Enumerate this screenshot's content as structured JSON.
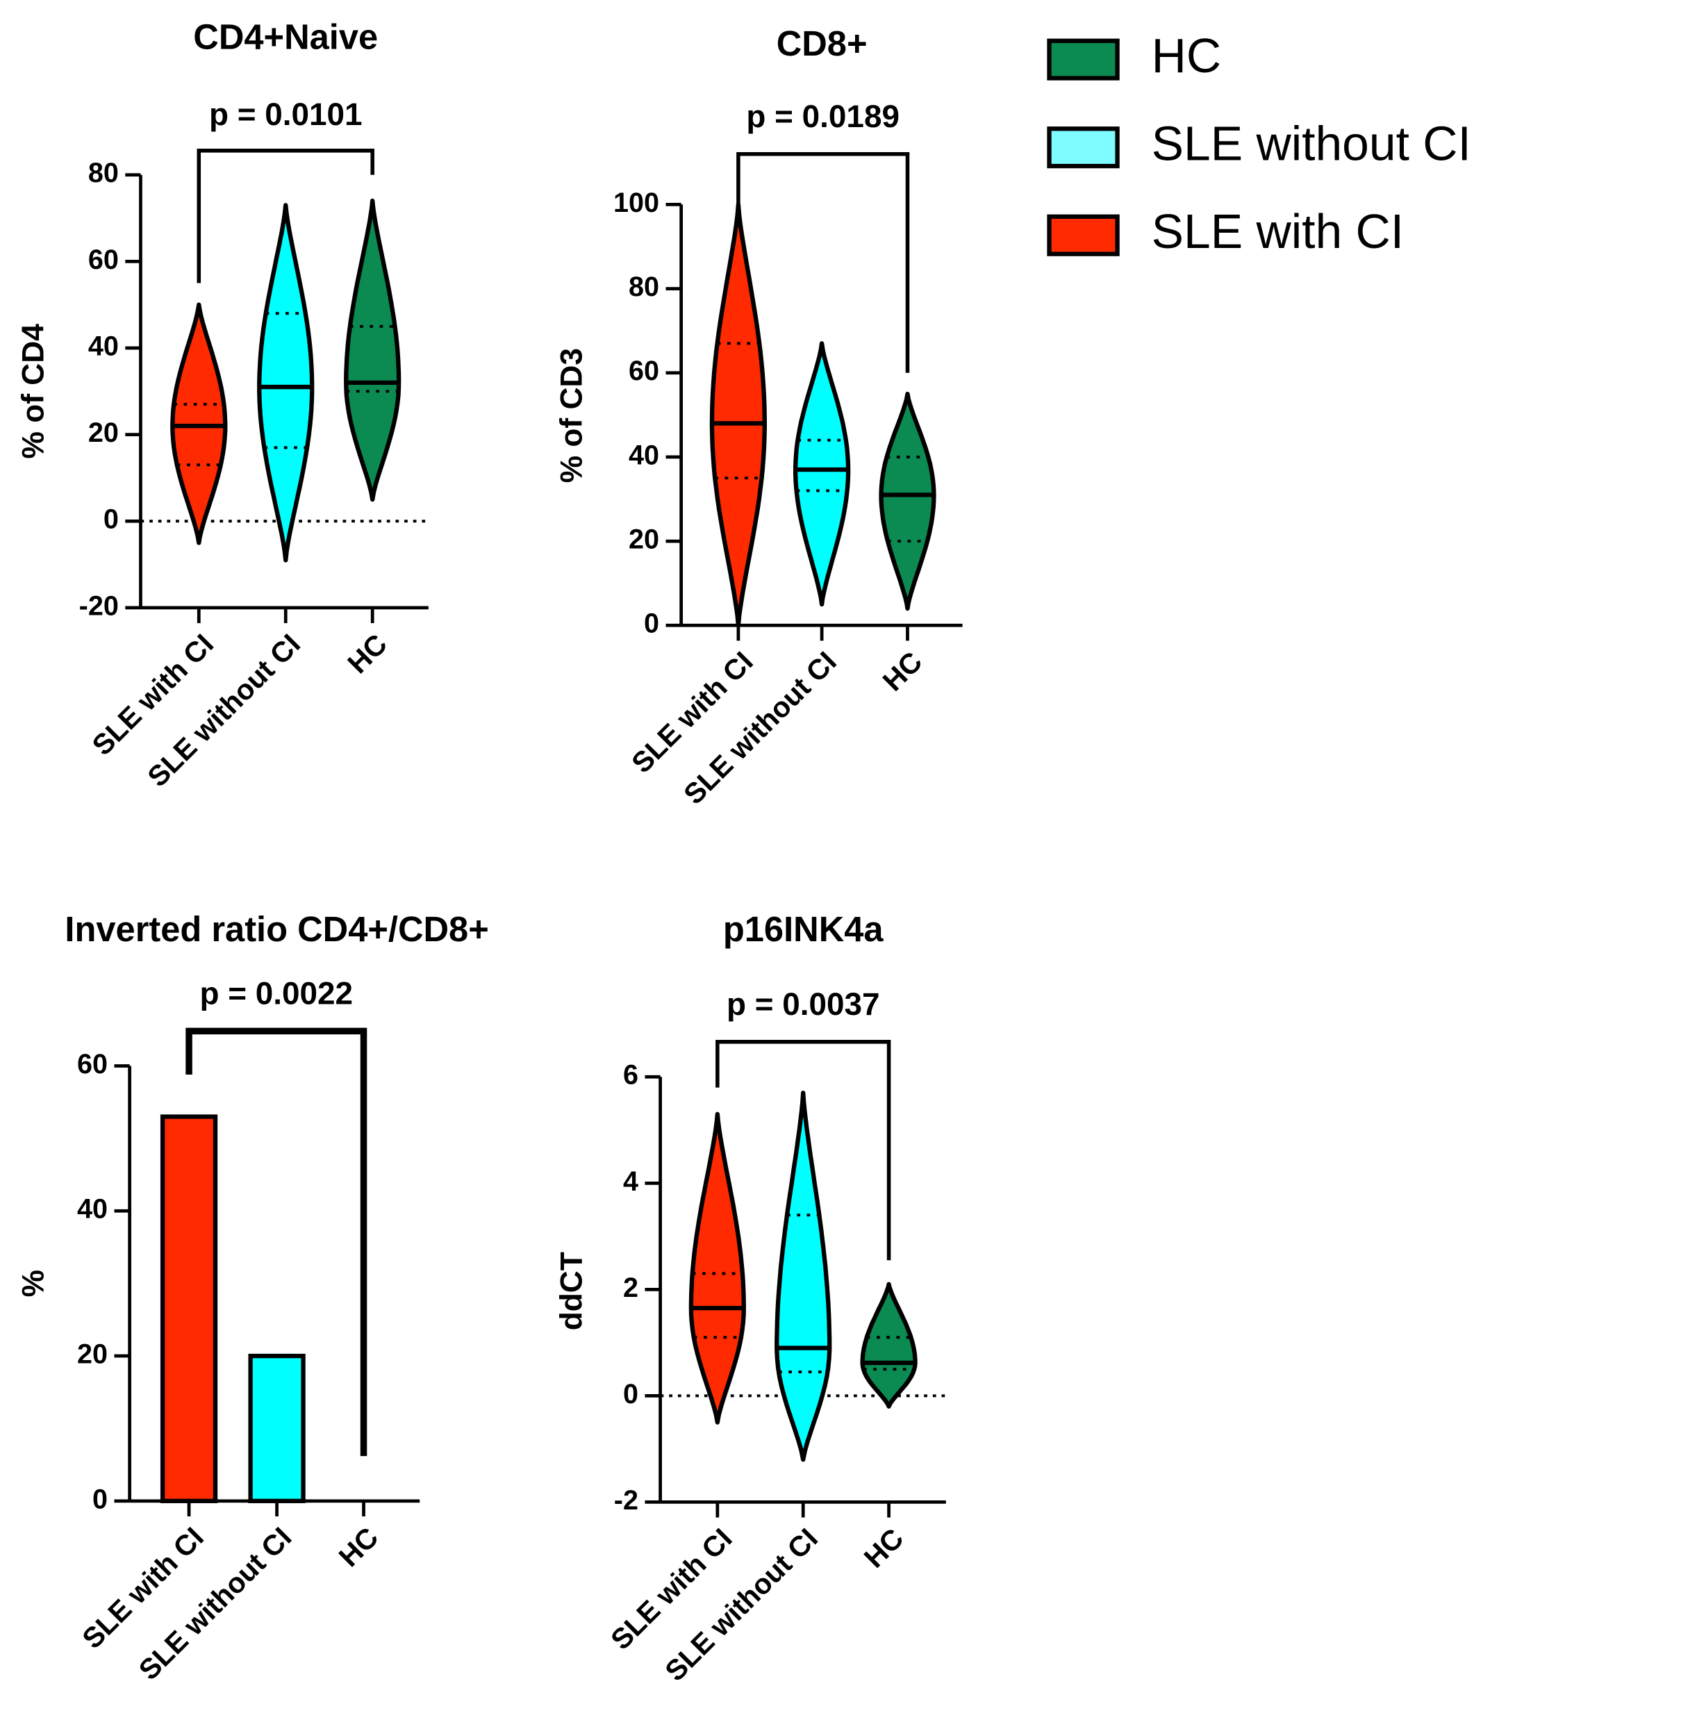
{
  "legend": [
    {
      "name": "HC",
      "color": "#0b8a52"
    },
    {
      "name": "SLE without CI",
      "color": "#7ffcff"
    },
    {
      "name": "SLE with CI",
      "color": "#ff2a00"
    }
  ],
  "chart_data": [
    {
      "type": "violin",
      "title": "CD4+Naive",
      "y_label": "% of CD4",
      "categories": [
        "SLE with CI",
        "SLE without CI",
        "HC"
      ],
      "colors": [
        "#ff2a00",
        "#00ffff",
        "#0b8a52"
      ],
      "min": [
        -5,
        -9,
        5
      ],
      "q1": [
        13,
        17,
        30
      ],
      "median": [
        22,
        31,
        32
      ],
      "q3": [
        27,
        48,
        45
      ],
      "max": [
        50,
        73,
        74
      ],
      "ylim": [
        -20,
        80
      ],
      "yticks": [
        -20,
        0,
        20,
        40,
        60,
        80
      ],
      "zero_line": true,
      "bracket": {
        "label": "p = 0.0101",
        "y": 85.6,
        "ends": [
          55,
          80
        ]
      }
    },
    {
      "type": "violin",
      "title": "CD8+",
      "y_label": "% of CD3",
      "categories": [
        "SLE with CI",
        "SLE without CI",
        "HC"
      ],
      "colors": [
        "#ff2a00",
        "#00ffff",
        "#0b8a52"
      ],
      "min": [
        0,
        5,
        4
      ],
      "q1": [
        35,
        32,
        20
      ],
      "median": [
        48,
        37,
        31
      ],
      "q3": [
        67,
        44,
        40
      ],
      "max": [
        100,
        67,
        55
      ],
      "ylim": [
        0,
        100
      ],
      "yticks": [
        0,
        20,
        40,
        60,
        80,
        100
      ],
      "zero_line": false,
      "bracket": {
        "label": "p = 0.0189",
        "y": 112,
        "ends": [
          100,
          60
        ]
      }
    },
    {
      "type": "bar",
      "title": "Inverted ratio CD4+/CD8+",
      "y_label": "%",
      "categories": [
        "SLE with CI",
        "SLE without CI",
        "HC"
      ],
      "colors": [
        "#ff2a00",
        "#00ffff",
        "#0b8a52"
      ],
      "values": [
        53,
        20,
        0
      ],
      "ylim": [
        0,
        60
      ],
      "yticks": [
        0,
        20,
        40,
        60
      ],
      "zero_line": false,
      "bracket": {
        "label": "p = 0.0022",
        "y": 64.8,
        "ends": [
          58.8,
          6.2
        ]
      }
    },
    {
      "type": "violin",
      "title": "p16INK4a",
      "y_label": "ddCT",
      "categories": [
        "SLE with CI",
        "SLE without CI",
        "HC"
      ],
      "colors": [
        "#ff2a00",
        "#00ffff",
        "#0b8a52"
      ],
      "min": [
        -0.5,
        -1.2,
        -0.2
      ],
      "q1": [
        1.1,
        0.45,
        0.5
      ],
      "median": [
        1.65,
        0.9,
        0.62
      ],
      "q3": [
        2.3,
        3.4,
        1.1
      ],
      "max": [
        5.3,
        5.7,
        2.1
      ],
      "ylim": [
        -2,
        6
      ],
      "yticks": [
        -2,
        0,
        2,
        4,
        6
      ],
      "zero_line": true,
      "bracket": {
        "label": "p = 0.0037",
        "y": 6.66,
        "ends": [
          5.8,
          2.55
        ]
      }
    }
  ]
}
